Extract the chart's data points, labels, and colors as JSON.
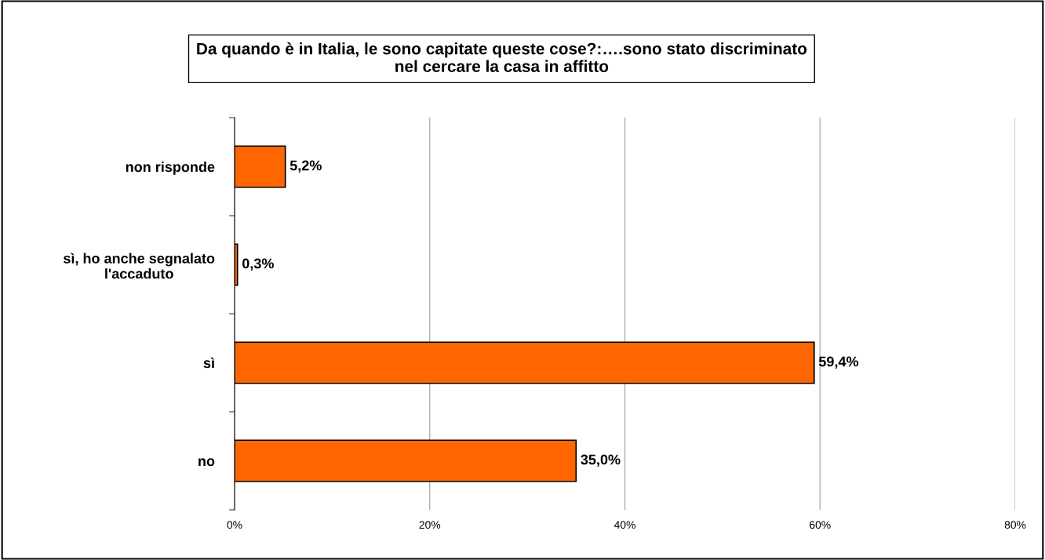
{
  "chart_data": {
    "type": "bar",
    "orientation": "horizontal",
    "title": "Da quando è in Italia, le sono capitate queste cose?:….sono stato discriminato\nnel cercare la casa in affitto",
    "categories": [
      "non risponde",
      "sì, ho anche segnalato\nl'accaduto",
      "sì",
      "no"
    ],
    "values": [
      5.2,
      0.3,
      59.4,
      35.0
    ],
    "value_labels": [
      "5,2%",
      "0,3%",
      "59,4%",
      "35,0%"
    ],
    "color": "#ff6600",
    "xlim": [
      0,
      80
    ],
    "xticks": [
      {
        "value": 0,
        "label": "0%"
      },
      {
        "value": 20,
        "label": "20%"
      },
      {
        "value": 40,
        "label": "40%"
      },
      {
        "value": 60,
        "label": "60%"
      },
      {
        "value": 80,
        "label": "80%"
      }
    ],
    "grid": "x"
  }
}
